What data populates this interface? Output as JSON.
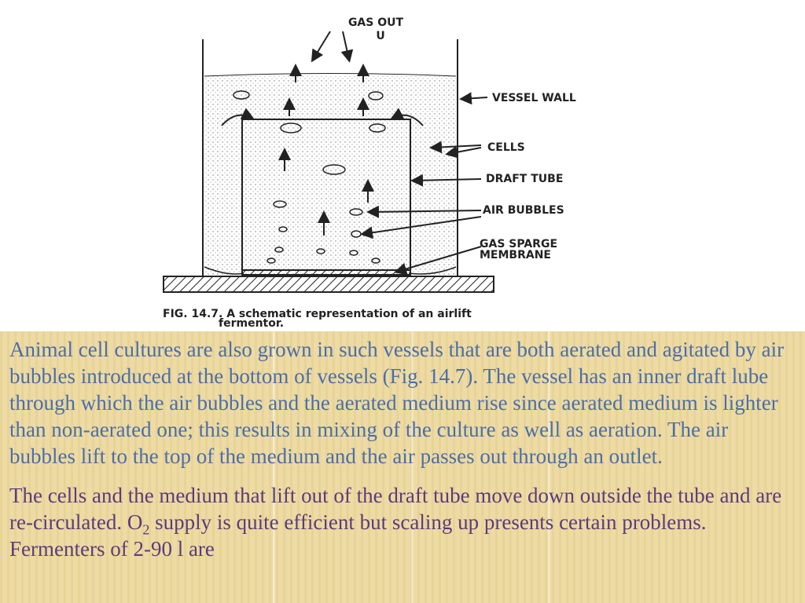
{
  "figure": {
    "labels": [
      "GAS OUT",
      "U",
      "VESSEL WALL",
      "CELLS",
      "DRAFT TUBE",
      "AIR BUBBLES",
      "GAS SPARGE",
      "MEMBRANE"
    ],
    "caption_line1": "FIG. 14.7. A schematic representation of an airlift",
    "caption_line2": "fermentor."
  },
  "paragraphs": [
    "Animal cell cultures are also grown in such vessels that are both aerated and agitated by air bubbles introduced at the bottom of vessels (Fig. 14.7). The vessel has an inner draft lube through which the air bubbles and the aerated medium rise since aerated medium is lighter than non-aerated one; this results in mixing of the culture as well as aeration. The air bubbles lift to the top of the medium and the air passes out through an outlet.",
    {
      "before": "The cells and the medium that lift out of the draft tube move down outside the tube and are re-circulated. O",
      "subscript": "2",
      "after": " supply is quite efficient but scaling up presents certain problems. Fermenters of 2-90 l are"
    }
  ]
}
